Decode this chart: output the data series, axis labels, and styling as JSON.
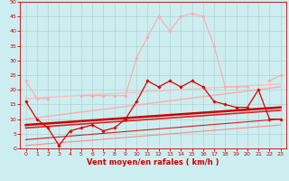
{
  "title": "",
  "xlabel": "Vent moyen/en rafales ( km/h )",
  "ylabel": "",
  "background_color": "#cceef0",
  "grid_color": "#aacccc",
  "xlim": [
    -0.5,
    23.5
  ],
  "ylim": [
    0,
    50
  ],
  "yticks": [
    0,
    5,
    10,
    15,
    20,
    25,
    30,
    35,
    40,
    45,
    50
  ],
  "xticks": [
    0,
    1,
    2,
    3,
    4,
    5,
    6,
    7,
    8,
    9,
    10,
    11,
    12,
    13,
    14,
    15,
    16,
    17,
    18,
    19,
    20,
    21,
    22,
    23
  ],
  "series": [
    {
      "name": "rafales_light",
      "color": "#ffaaaa",
      "linewidth": 0.8,
      "marker": "D",
      "markersize": 1.8,
      "x": [
        0,
        1,
        2,
        3,
        4,
        5,
        6,
        7,
        8,
        9,
        10,
        11,
        12,
        13,
        14,
        15,
        16,
        17,
        18,
        19,
        20,
        21,
        22,
        23
      ],
      "y": [
        23,
        17,
        17,
        null,
        null,
        18,
        18,
        18,
        18,
        18,
        31,
        38,
        45,
        40,
        45,
        46,
        45,
        35,
        21,
        21,
        21,
        null,
        23,
        25
      ]
    },
    {
      "name": "vent_moyen_dark",
      "color": "#dd0000",
      "linewidth": 0.9,
      "marker": "D",
      "markersize": 1.8,
      "x": [
        0,
        1,
        2,
        3,
        4,
        5,
        6,
        7,
        8,
        9,
        10,
        11,
        12,
        13,
        14,
        15,
        16,
        17,
        18,
        19,
        20,
        21,
        22,
        23
      ],
      "y": [
        16,
        10,
        7,
        1,
        6,
        7,
        8,
        6,
        7,
        10,
        16,
        23,
        21,
        23,
        21,
        23,
        21,
        16,
        15,
        14,
        14,
        20,
        10,
        10
      ]
    },
    {
      "name": "trend1_light_high",
      "color": "#ffbbbb",
      "linewidth": 1.0,
      "x": [
        0,
        23
      ],
      "y": [
        17,
        22
      ]
    },
    {
      "name": "trend2_light_mid",
      "color": "#ffaaaa",
      "linewidth": 1.0,
      "x": [
        0,
        23
      ],
      "y": [
        10,
        21
      ]
    },
    {
      "name": "trend3_dark_thick",
      "color": "#cc0000",
      "linewidth": 1.8,
      "x": [
        0,
        23
      ],
      "y": [
        8,
        14
      ]
    },
    {
      "name": "trend4_dark_mid",
      "color": "#dd2222",
      "linewidth": 1.2,
      "x": [
        0,
        23
      ],
      "y": [
        7,
        13
      ]
    },
    {
      "name": "trend5_dark_thin",
      "color": "#cc2222",
      "linewidth": 0.8,
      "x": [
        0,
        23
      ],
      "y": [
        3,
        10
      ]
    },
    {
      "name": "trend6_light_thin",
      "color": "#ff8888",
      "linewidth": 0.8,
      "x": [
        0,
        23
      ],
      "y": [
        1,
        8
      ]
    }
  ],
  "xlabel_fontsize": 6.0,
  "tick_fontsize": 4.5,
  "tick_color": "#cc0000",
  "spine_color": "#cc0000"
}
